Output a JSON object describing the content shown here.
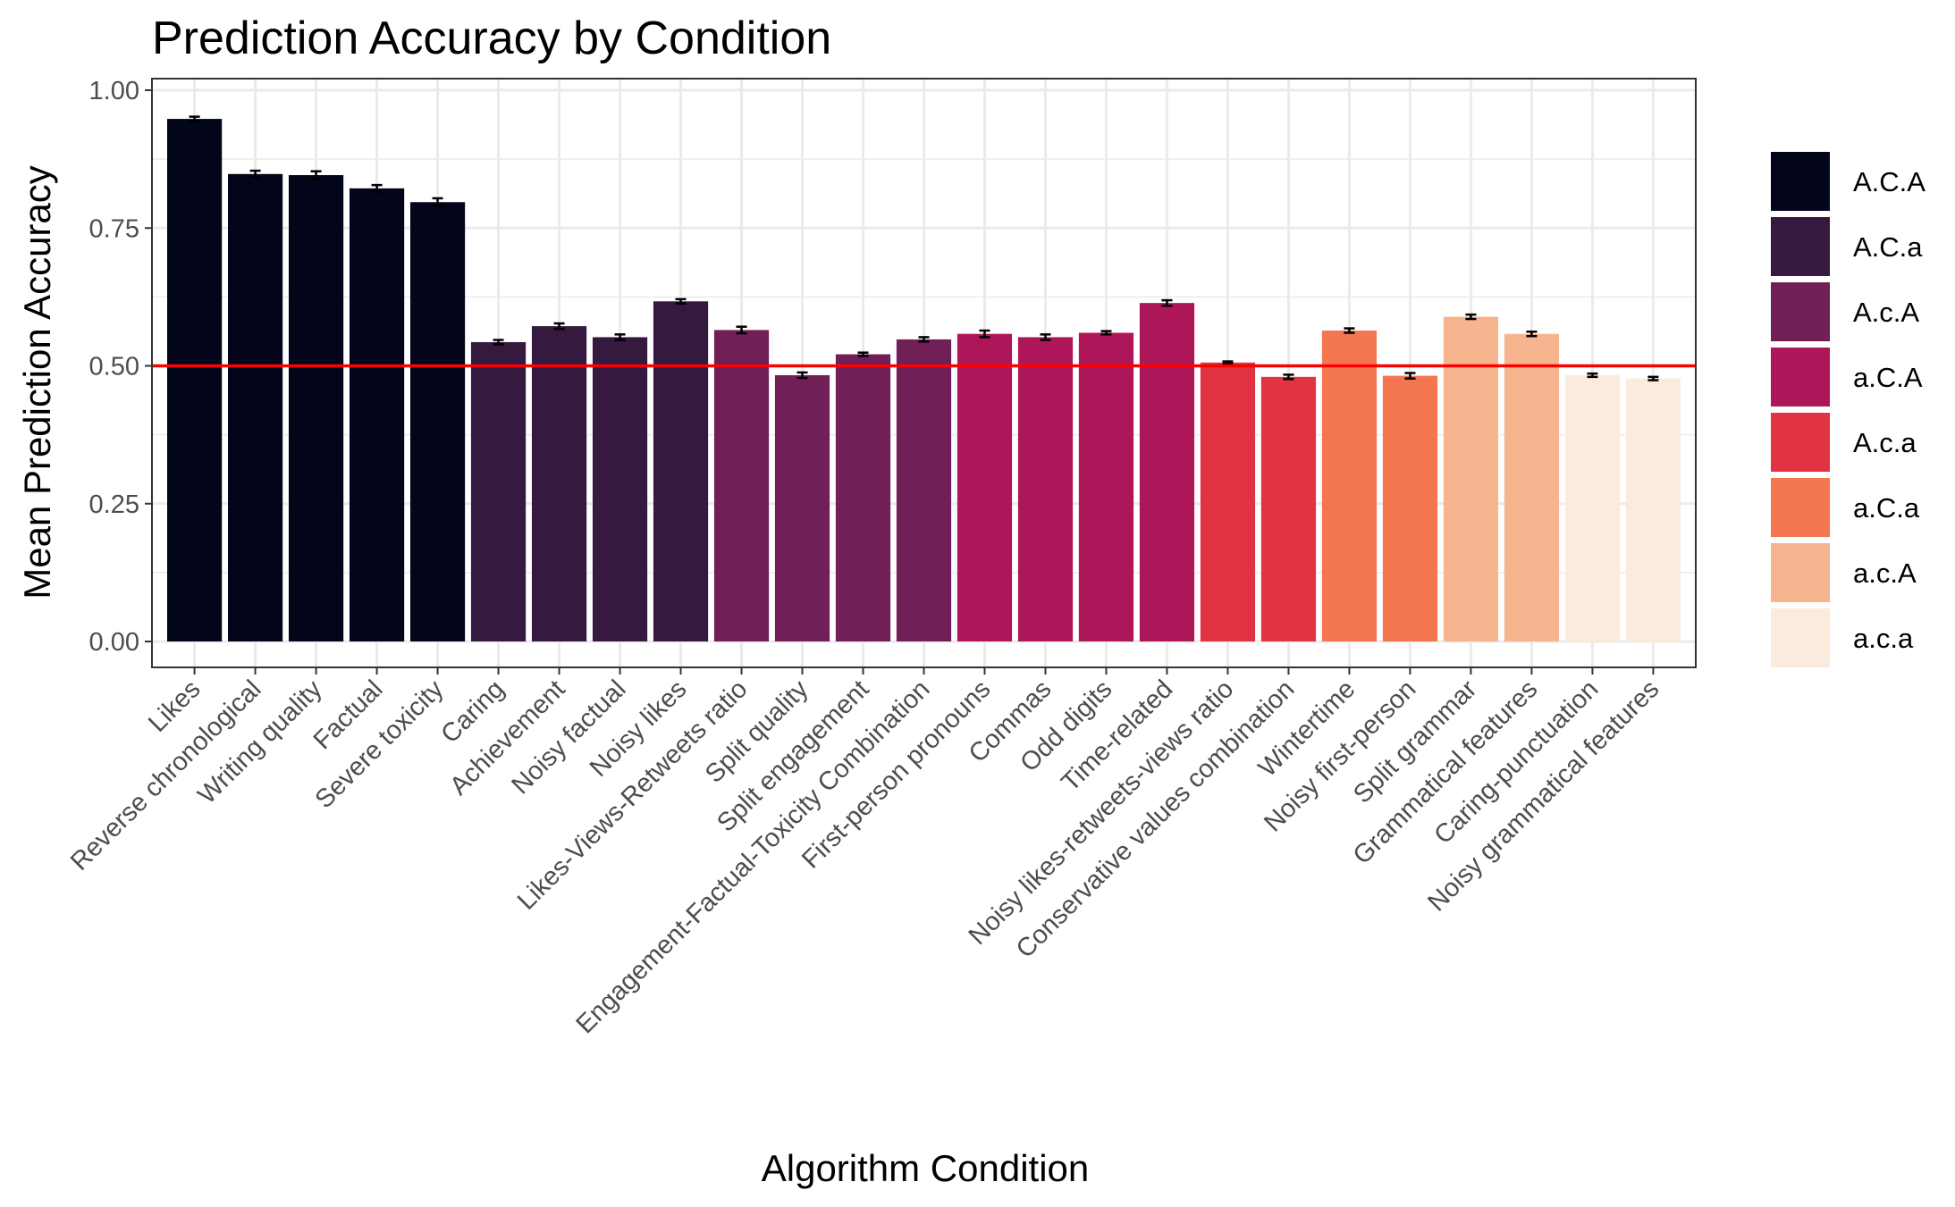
{
  "chart_data": {
    "type": "bar",
    "title": "Prediction Accuracy by Condition",
    "xlabel": "Algorithm Condition",
    "ylabel": "Mean Prediction Accuracy",
    "ylim": [
      -0.05,
      1.0
    ],
    "yticks": [
      0.0,
      0.25,
      0.5,
      0.75,
      1.0
    ],
    "ytick_labels": [
      "0.00",
      "0.25",
      "0.50",
      "0.75",
      "1.00"
    ],
    "reference_line": {
      "y": 0.5,
      "color": "#ff0000"
    },
    "grid": true,
    "legend_position": "right",
    "legend": [
      {
        "label": "A.C.A",
        "color": "#03051a"
      },
      {
        "label": "A.C.a",
        "color": "#35193e"
      },
      {
        "label": "A.c.A",
        "color": "#701f57"
      },
      {
        "label": "a.C.A",
        "color": "#ad1759"
      },
      {
        "label": "A.c.a",
        "color": "#e13342"
      },
      {
        "label": "a.C.a",
        "color": "#f37651"
      },
      {
        "label": "a.c.A",
        "color": "#f6b48f"
      },
      {
        "label": "a.c.a",
        "color": "#faebdd"
      }
    ],
    "bars": [
      {
        "category": "Likes",
        "value": 0.948,
        "err": 0.004,
        "group": "A.C.A"
      },
      {
        "category": "Reverse chronological",
        "value": 0.848,
        "err": 0.006,
        "group": "A.C.A"
      },
      {
        "category": "Writing quality",
        "value": 0.846,
        "err": 0.007,
        "group": "A.C.A"
      },
      {
        "category": "Factual",
        "value": 0.822,
        "err": 0.006,
        "group": "A.C.A"
      },
      {
        "category": "Severe toxicity",
        "value": 0.797,
        "err": 0.007,
        "group": "A.C.A"
      },
      {
        "category": "Caring",
        "value": 0.543,
        "err": 0.004,
        "group": "A.C.a"
      },
      {
        "category": "Achievement",
        "value": 0.572,
        "err": 0.005,
        "group": "A.C.a"
      },
      {
        "category": "Noisy factual",
        "value": 0.552,
        "err": 0.005,
        "group": "A.C.a"
      },
      {
        "category": "Noisy likes",
        "value": 0.617,
        "err": 0.004,
        "group": "A.C.a"
      },
      {
        "category": "Likes-Views-Retweets ratio",
        "value": 0.565,
        "err": 0.006,
        "group": "A.c.A"
      },
      {
        "category": "Split quality",
        "value": 0.483,
        "err": 0.005,
        "group": "A.c.A"
      },
      {
        "category": "Split engagement",
        "value": 0.521,
        "err": 0.003,
        "group": "A.c.A"
      },
      {
        "category": "Engagement-Factual-Toxicity Combination",
        "value": 0.548,
        "err": 0.004,
        "group": "A.c.A"
      },
      {
        "category": "First-person pronouns",
        "value": 0.558,
        "err": 0.006,
        "group": "a.C.A"
      },
      {
        "category": "Commas",
        "value": 0.552,
        "err": 0.005,
        "group": "a.C.A"
      },
      {
        "category": "Odd digits",
        "value": 0.56,
        "err": 0.003,
        "group": "a.C.A"
      },
      {
        "category": "Time-related",
        "value": 0.614,
        "err": 0.005,
        "group": "a.C.A"
      },
      {
        "category": "Noisy likes-retweets-views ratio",
        "value": 0.506,
        "err": 0.002,
        "group": "A.c.a"
      },
      {
        "category": "Conservative values combination",
        "value": 0.48,
        "err": 0.004,
        "group": "A.c.a"
      },
      {
        "category": "Wintertime",
        "value": 0.564,
        "err": 0.004,
        "group": "a.C.a"
      },
      {
        "category": "Noisy first-person",
        "value": 0.482,
        "err": 0.005,
        "group": "a.C.a"
      },
      {
        "category": "Split grammar",
        "value": 0.589,
        "err": 0.004,
        "group": "a.c.A"
      },
      {
        "category": "Grammatical features",
        "value": 0.558,
        "err": 0.004,
        "group": "a.c.A"
      },
      {
        "category": "Caring-punctuation",
        "value": 0.483,
        "err": 0.003,
        "group": "a.c.a"
      },
      {
        "category": "Noisy grammatical features",
        "value": 0.477,
        "err": 0.003,
        "group": "a.c.a"
      }
    ]
  }
}
